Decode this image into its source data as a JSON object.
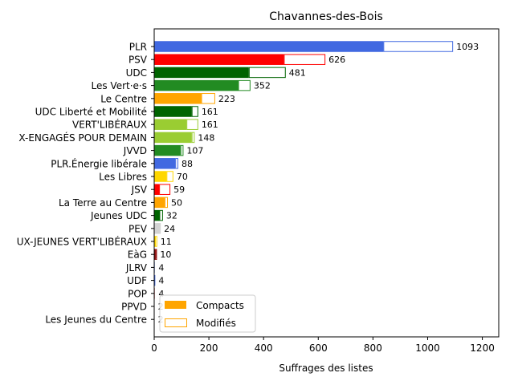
{
  "chart_data": {
    "type": "bar",
    "orientation": "horizontal",
    "stacked": true,
    "title": "Chavannes-des-Bois",
    "xlabel": "Suffrages des listes",
    "ylabel": "",
    "xlim": [
      0,
      1260
    ],
    "xticks": [
      0,
      200,
      400,
      600,
      800,
      1000,
      1200
    ],
    "grid": false,
    "legend_position": "lower-left",
    "legend": [
      {
        "label": "Compacts",
        "style": "filled",
        "color": "#FFA500"
      },
      {
        "label": "Modifiés",
        "style": "outline",
        "color": "#FFA500"
      }
    ],
    "categories": [
      "PLR",
      "PSV",
      "UDC",
      "Les Vert·e·s",
      "Le Centre",
      "UDC Liberté et Mobilité",
      "VERT'LIBÉRAUX",
      "X-ENGAGÉS POUR DEMAIN",
      "JVVD",
      "PLR.Énergie libérale",
      "Les Libres",
      "JSV",
      "La Terre au Centre",
      "Jeunes UDC",
      "PEV",
      "UX-JEUNES VERT'LIBÉRAUX",
      "EàG",
      "JLRV",
      "UDF",
      "POP",
      "PPVD",
      "Les Jeunes du Centre"
    ],
    "series": [
      {
        "name": "Compacts",
        "values": [
          838,
          474,
          346,
          307,
          172,
          137,
          118,
          137,
          96,
          77,
          45,
          18,
          38,
          19,
          19,
          3,
          4,
          2,
          1,
          2,
          1,
          1
        ]
      },
      {
        "name": "Modifiés",
        "values": [
          255,
          152,
          135,
          45,
          51,
          24,
          43,
          11,
          11,
          11,
          25,
          41,
          12,
          13,
          5,
          8,
          6,
          2,
          3,
          2,
          1,
          1
        ]
      }
    ],
    "totals": [
      1093,
      626,
      481,
      352,
      223,
      161,
      161,
      148,
      107,
      88,
      70,
      59,
      50,
      32,
      24,
      11,
      10,
      4,
      4,
      4,
      2,
      2
    ],
    "colors": [
      "#4169E1",
      "#FF0000",
      "#006400",
      "#228B22",
      "#FFA500",
      "#006400",
      "#9ACD32",
      "#9ACD32",
      "#228B22",
      "#4169E1",
      "#FFD700",
      "#FF0000",
      "#FFA500",
      "#006400",
      "#D3D3D3",
      "#FFD700",
      "#8B0000",
      "#4169E1",
      "#4169E1",
      "#B22222",
      "#FFA500",
      "#FFA500"
    ]
  }
}
